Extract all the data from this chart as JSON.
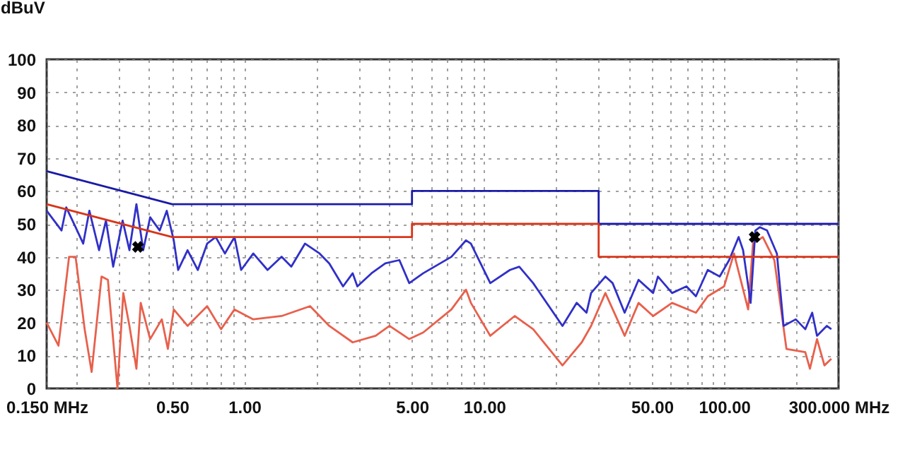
{
  "chart_data": {
    "type": "line",
    "ylabel": "dBuV",
    "xlim": [
      0.15,
      300
    ],
    "ylim": [
      0,
      100
    ],
    "log": "x",
    "grid": true,
    "line_style": "solid",
    "xticks": [
      {
        "value": 0.15,
        "label": "0.150 MHz"
      },
      {
        "value": 0.2,
        "label": null
      },
      {
        "value": 0.3,
        "label": null
      },
      {
        "value": 0.4,
        "label": null
      },
      {
        "value": 0.5,
        "label": "0.50"
      },
      {
        "value": 0.6,
        "label": null
      },
      {
        "value": 0.7,
        "label": null
      },
      {
        "value": 0.8,
        "label": null
      },
      {
        "value": 0.9,
        "label": null
      },
      {
        "value": 1,
        "label": "1.00"
      },
      {
        "value": 2,
        "label": null
      },
      {
        "value": 3,
        "label": null
      },
      {
        "value": 4,
        "label": null
      },
      {
        "value": 5,
        "label": "5.00"
      },
      {
        "value": 6,
        "label": null
      },
      {
        "value": 7,
        "label": null
      },
      {
        "value": 8,
        "label": null
      },
      {
        "value": 9,
        "label": null
      },
      {
        "value": 10,
        "label": "10.00"
      },
      {
        "value": 20,
        "label": null
      },
      {
        "value": 30,
        "label": null
      },
      {
        "value": 40,
        "label": null
      },
      {
        "value": 50,
        "label": "50.00"
      },
      {
        "value": 60,
        "label": null
      },
      {
        "value": 70,
        "label": null
      },
      {
        "value": 80,
        "label": null
      },
      {
        "value": 90,
        "label": null
      },
      {
        "value": 100,
        "label": "100.00"
      },
      {
        "value": 200,
        "label": null
      },
      {
        "value": 300,
        "label": "300.000 MHz"
      }
    ],
    "yticks": [
      0,
      10,
      20,
      30,
      40,
      50,
      60,
      70,
      80,
      90,
      100
    ],
    "series": [
      {
        "type": "line",
        "color": "#e8604c",
        "x": [
          0.15,
          0.168,
          0.186,
          0.198,
          0.216,
          0.231,
          0.254,
          0.27,
          0.296,
          0.313,
          0.332,
          0.355,
          0.37,
          0.405,
          0.453,
          0.48,
          0.508,
          0.58,
          0.7,
          0.8,
          0.91,
          1.09,
          1.43,
          1.88,
          2.26,
          2.83,
          3.53,
          4.03,
          4.87,
          5.57,
          7.3,
          8.4,
          8.8,
          10.6,
          13.4,
          16,
          21.2,
          25.5,
          27.9,
          32,
          38.5,
          44,
          50.6,
          60.7,
          76.3,
          85.5,
          100,
          110,
          126,
          132,
          145,
          162,
          182,
          218,
          228,
          244,
          262,
          280
        ],
        "values": [
          20,
          13,
          40,
          40,
          18,
          5,
          34,
          33,
          0,
          29,
          19,
          6,
          26,
          15,
          21,
          12,
          24,
          19,
          25,
          18,
          24,
          21,
          22,
          25,
          19,
          14,
          16,
          19,
          15,
          17,
          24,
          30,
          26,
          16,
          22,
          18,
          7,
          14,
          19,
          29,
          16,
          26,
          22,
          26,
          23,
          28,
          31,
          41,
          24,
          44,
          46,
          39,
          12,
          11,
          6,
          15,
          7,
          9
        ]
      },
      {
        "type": "line",
        "color": "#3030c8",
        "x": [
          0.15,
          0.173,
          0.181,
          0.198,
          0.213,
          0.226,
          0.248,
          0.265,
          0.284,
          0.311,
          0.332,
          0.355,
          0.379,
          0.405,
          0.444,
          0.475,
          0.508,
          0.53,
          0.58,
          0.64,
          0.7,
          0.76,
          0.83,
          0.91,
          0.97,
          1.09,
          1.25,
          1.43,
          1.57,
          1.79,
          2.06,
          2.26,
          2.58,
          2.83,
          2.96,
          3.39,
          3.87,
          4.43,
          4.87,
          5.57,
          7.3,
          8.4,
          8.8,
          10.6,
          12.8,
          14,
          16,
          21.2,
          24.3,
          26.7,
          27.9,
          32,
          34.3,
          38.5,
          44,
          50.6,
          53,
          60.7,
          69.7,
          76.3,
          85.5,
          95.9,
          105,
          115,
          120,
          129,
          135,
          141,
          151,
          166,
          177,
          199,
          218,
          233,
          244,
          268,
          280
        ],
        "values": [
          54,
          48,
          55,
          49,
          44,
          54,
          42,
          51,
          37,
          51,
          42,
          56,
          42,
          52,
          48,
          54,
          45,
          36,
          42,
          36,
          44,
          46,
          41,
          46,
          36,
          41,
          36,
          40,
          37,
          44,
          41,
          38,
          31,
          35,
          31,
          35,
          38,
          39,
          32,
          35,
          40,
          45,
          44,
          32,
          36,
          37,
          32,
          19,
          26,
          23,
          29,
          34,
          32,
          23,
          33,
          29,
          34,
          29,
          31,
          28,
          36,
          34,
          39,
          46,
          42,
          26,
          48,
          49,
          48,
          41,
          19,
          21,
          18,
          23,
          16,
          19,
          18
        ]
      },
      {
        "type": "line",
        "color": "#1a1aa8",
        "x": [
          0.15,
          0.5,
          5,
          5,
          30,
          30,
          300
        ],
        "values": [
          66,
          56,
          56,
          60,
          60,
          50,
          50
        ]
      },
      {
        "type": "line",
        "color": "#d83418",
        "x": [
          0.15,
          0.5,
          5,
          5,
          30,
          30,
          300
        ],
        "values": [
          56,
          46,
          46,
          50,
          50,
          40,
          40
        ]
      },
      {
        "type": "scatter",
        "marker": "cross",
        "color": "#000000",
        "x": [
          0.36,
          134
        ],
        "values": [
          43,
          46
        ]
      }
    ]
  }
}
